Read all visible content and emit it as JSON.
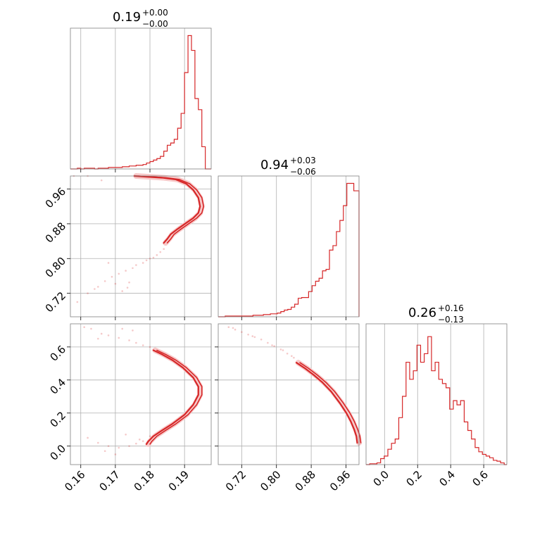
{
  "style": {
    "accent": "#d62728",
    "grid": "#b0b0b0",
    "frame": "#808080"
  },
  "chart_data": [
    {
      "type": "histogram",
      "panel": "diag-0",
      "title": {
        "main": "0.19",
        "sup": "+0.00",
        "sub": "−0.00"
      },
      "xlim": [
        0.157,
        0.1977
      ],
      "grid": true,
      "x_ticks": [
        0.16,
        0.17,
        0.18,
        0.19
      ],
      "tick_labels": [
        "0.16",
        "0.17",
        "0.18",
        "0.19"
      ],
      "bin_edges": [
        0.157,
        0.158,
        0.159,
        0.16,
        0.161,
        0.162,
        0.163,
        0.164,
        0.165,
        0.166,
        0.167,
        0.168,
        0.169,
        0.17,
        0.171,
        0.172,
        0.173,
        0.174,
        0.175,
        0.176,
        0.177,
        0.178,
        0.179,
        0.18,
        0.181,
        0.182,
        0.183,
        0.184,
        0.185,
        0.186,
        0.187,
        0.188,
        0.189,
        0.19,
        0.191,
        0.192,
        0.193,
        0.194,
        0.195,
        0.196,
        0.197,
        0.1977
      ],
      "counts": [
        0,
        0,
        1,
        0,
        1,
        1,
        1,
        0,
        1,
        1,
        1,
        2,
        2,
        2,
        2,
        3,
        3,
        4,
        4,
        5,
        5,
        6,
        8,
        10,
        12,
        14,
        17,
        24,
        32,
        35,
        40,
        55,
        75,
        130,
        180,
        160,
        95,
        80,
        30,
        0,
        0
      ],
      "ylim": [
        0,
        190
      ]
    },
    {
      "type": "histogram",
      "panel": "diag-1",
      "title": {
        "main": "0.94",
        "sup": "+0.03",
        "sub": "−0.06"
      },
      "xlim": [
        0.666,
        0.99
      ],
      "grid": true,
      "x_ticks": [
        0.72,
        0.8,
        0.88,
        0.96
      ],
      "tick_labels": [
        "0.72",
        "0.80",
        "0.88",
        "0.96"
      ],
      "bin_edges": [
        0.666,
        0.674,
        0.682,
        0.69,
        0.698,
        0.706,
        0.714,
        0.722,
        0.73,
        0.738,
        0.746,
        0.754,
        0.762,
        0.77,
        0.778,
        0.786,
        0.794,
        0.802,
        0.81,
        0.818,
        0.826,
        0.834,
        0.842,
        0.85,
        0.858,
        0.866,
        0.874,
        0.882,
        0.89,
        0.898,
        0.906,
        0.914,
        0.922,
        0.93,
        0.938,
        0.946,
        0.954,
        0.962,
        0.97,
        0.978,
        0.986,
        0.99
      ],
      "counts": [
        0,
        0,
        1,
        1,
        1,
        1,
        1,
        1,
        1,
        1,
        2,
        2,
        2,
        3,
        3,
        4,
        4,
        5,
        7,
        9,
        10,
        13,
        17,
        25,
        26,
        26,
        34,
        42,
        48,
        52,
        62,
        64,
        90,
        96,
        115,
        130,
        150,
        180,
        180,
        170,
        170
      ],
      "ylim": [
        0,
        190
      ]
    },
    {
      "type": "histogram",
      "panel": "diag-2",
      "title": {
        "main": "0.26",
        "sup": "+0.16",
        "sub": "−0.13"
      },
      "xlim": [
        -0.112,
        0.74
      ],
      "grid": true,
      "x_ticks": [
        0.0,
        0.2,
        0.4,
        0.6
      ],
      "tick_labels": [
        "0.0",
        "0.2",
        "0.4",
        "0.6"
      ],
      "bin_edges": [
        -0.112,
        -0.09,
        -0.068,
        -0.046,
        -0.024,
        -0.002,
        0.02,
        0.042,
        0.064,
        0.086,
        0.108,
        0.13,
        0.152,
        0.174,
        0.196,
        0.218,
        0.24,
        0.262,
        0.284,
        0.306,
        0.328,
        0.35,
        0.372,
        0.394,
        0.416,
        0.438,
        0.46,
        0.482,
        0.504,
        0.526,
        0.548,
        0.57,
        0.592,
        0.614,
        0.636,
        0.658,
        0.68,
        0.702,
        0.724,
        0.74
      ],
      "counts": [
        0,
        1,
        1,
        2,
        7,
        10,
        18,
        25,
        30,
        55,
        80,
        120,
        100,
        110,
        140,
        120,
        130,
        150,
        110,
        120,
        100,
        95,
        90,
        65,
        75,
        70,
        75,
        50,
        40,
        30,
        20,
        15,
        12,
        10,
        8,
        5,
        4,
        2,
        0
      ],
      "ylim": [
        0,
        165
      ]
    },
    {
      "type": "contour",
      "panel": "pair-1-0",
      "xlim": [
        0.157,
        0.1977
      ],
      "ylim": [
        0.666,
        0.99
      ],
      "grid": true,
      "x_ticks": [
        0.16,
        0.17,
        0.18,
        0.19
      ],
      "y_ticks": [
        0.72,
        0.8,
        0.88,
        0.96
      ],
      "y_tick_labels": [
        "0.72",
        "0.80",
        "0.88",
        "0.96"
      ],
      "ridge": [
        [
          0.176,
          0.99
        ],
        [
          0.18,
          0.988
        ],
        [
          0.184,
          0.986
        ],
        [
          0.188,
          0.982
        ],
        [
          0.191,
          0.972
        ],
        [
          0.193,
          0.958
        ],
        [
          0.1945,
          0.94
        ],
        [
          0.195,
          0.92
        ],
        [
          0.1945,
          0.905
        ],
        [
          0.193,
          0.893
        ],
        [
          0.191,
          0.882
        ],
        [
          0.1885,
          0.868
        ],
        [
          0.1865,
          0.856
        ],
        [
          0.1855,
          0.845
        ],
        [
          0.1845,
          0.836
        ]
      ],
      "scatter": [
        [
          0.159,
          0.7
        ],
        [
          0.162,
          0.72
        ],
        [
          0.165,
          0.735
        ],
        [
          0.167,
          0.748
        ],
        [
          0.169,
          0.758
        ],
        [
          0.171,
          0.765
        ],
        [
          0.173,
          0.772
        ],
        [
          0.175,
          0.778
        ],
        [
          0.176,
          0.785
        ],
        [
          0.178,
          0.79
        ],
        [
          0.179,
          0.796
        ],
        [
          0.181,
          0.802
        ],
        [
          0.182,
          0.808
        ],
        [
          0.183,
          0.815
        ],
        [
          0.184,
          0.822
        ],
        [
          0.164,
          0.73
        ],
        [
          0.17,
          0.742
        ],
        [
          0.174,
          0.745
        ],
        [
          0.172,
          0.725
        ],
        [
          0.168,
          0.79
        ],
        [
          0.166,
          0.98
        ],
        [
          0.162,
          0.99
        ],
        [
          0.158,
          0.99
        ],
        [
          0.18,
          0.8
        ],
        [
          0.1735,
          0.733
        ]
      ]
    },
    {
      "type": "contour",
      "panel": "pair-2-0",
      "xlim": [
        0.157,
        0.1977
      ],
      "ylim": [
        -0.112,
        0.74
      ],
      "grid": true,
      "x_ticks": [
        0.16,
        0.17,
        0.18,
        0.19
      ],
      "y_ticks": [
        0.0,
        0.2,
        0.4,
        0.6
      ],
      "x_tick_labels": [
        "0.16",
        "0.17",
        "0.18",
        "0.19"
      ],
      "y_tick_labels": [
        "0.0",
        "0.2",
        "0.4",
        "0.6"
      ],
      "ridge": [
        [
          0.1815,
          0.58
        ],
        [
          0.184,
          0.555
        ],
        [
          0.187,
          0.52
        ],
        [
          0.19,
          0.475
        ],
        [
          0.193,
          0.415
        ],
        [
          0.1945,
          0.36
        ],
        [
          0.1945,
          0.31
        ],
        [
          0.193,
          0.25
        ],
        [
          0.1905,
          0.19
        ],
        [
          0.187,
          0.135
        ],
        [
          0.184,
          0.095
        ],
        [
          0.1815,
          0.06
        ],
        [
          0.18,
          0.028
        ],
        [
          0.1795,
          0.012
        ]
      ],
      "scatter": [
        [
          0.161,
          0.72
        ],
        [
          0.163,
          0.71
        ],
        [
          0.166,
          0.68
        ],
        [
          0.168,
          0.67
        ],
        [
          0.171,
          0.655
        ],
        [
          0.174,
          0.64
        ],
        [
          0.176,
          0.625
        ],
        [
          0.178,
          0.61
        ],
        [
          0.18,
          0.6
        ],
        [
          0.172,
          0.71
        ],
        [
          0.175,
          0.7
        ],
        [
          0.165,
          0.65
        ],
        [
          0.162,
          0.05
        ],
        [
          0.165,
          0.02
        ],
        [
          0.168,
          0.0
        ],
        [
          0.171,
          -0.01
        ],
        [
          0.174,
          0.0
        ],
        [
          0.176,
          0.015
        ],
        [
          0.178,
          0.03
        ],
        [
          0.17,
          -0.05
        ],
        [
          0.167,
          -0.03
        ],
        [
          0.173,
          0.07
        ],
        [
          0.177,
          0.04
        ],
        [
          0.18,
          0.06
        ]
      ]
    },
    {
      "type": "contour",
      "panel": "pair-2-1",
      "xlim": [
        0.666,
        0.99
      ],
      "ylim": [
        -0.112,
        0.74
      ],
      "grid": true,
      "x_ticks": [
        0.72,
        0.8,
        0.88,
        0.96
      ],
      "y_ticks": [
        0.0,
        0.2,
        0.4,
        0.6
      ],
      "x_tick_labels": [
        "0.72",
        "0.80",
        "0.88",
        "0.96"
      ],
      "ridge": [
        [
          0.85,
          0.505
        ],
        [
          0.87,
          0.47
        ],
        [
          0.89,
          0.43
        ],
        [
          0.91,
          0.385
        ],
        [
          0.93,
          0.33
        ],
        [
          0.95,
          0.26
        ],
        [
          0.965,
          0.2
        ],
        [
          0.975,
          0.15
        ],
        [
          0.983,
          0.1
        ],
        [
          0.988,
          0.06
        ],
        [
          0.99,
          0.02
        ]
      ],
      "scatter": [
        [
          0.69,
          0.72
        ],
        [
          0.705,
          0.705
        ],
        [
          0.72,
          0.69
        ],
        [
          0.735,
          0.675
        ],
        [
          0.75,
          0.66
        ],
        [
          0.765,
          0.645
        ],
        [
          0.78,
          0.625
        ],
        [
          0.795,
          0.605
        ],
        [
          0.81,
          0.585
        ],
        [
          0.825,
          0.56
        ],
        [
          0.84,
          0.535
        ],
        [
          0.7,
          0.715
        ],
        [
          0.745,
          0.665
        ],
        [
          0.79,
          0.61
        ],
        [
          0.815,
          0.58
        ],
        [
          0.835,
          0.545
        ]
      ]
    }
  ]
}
